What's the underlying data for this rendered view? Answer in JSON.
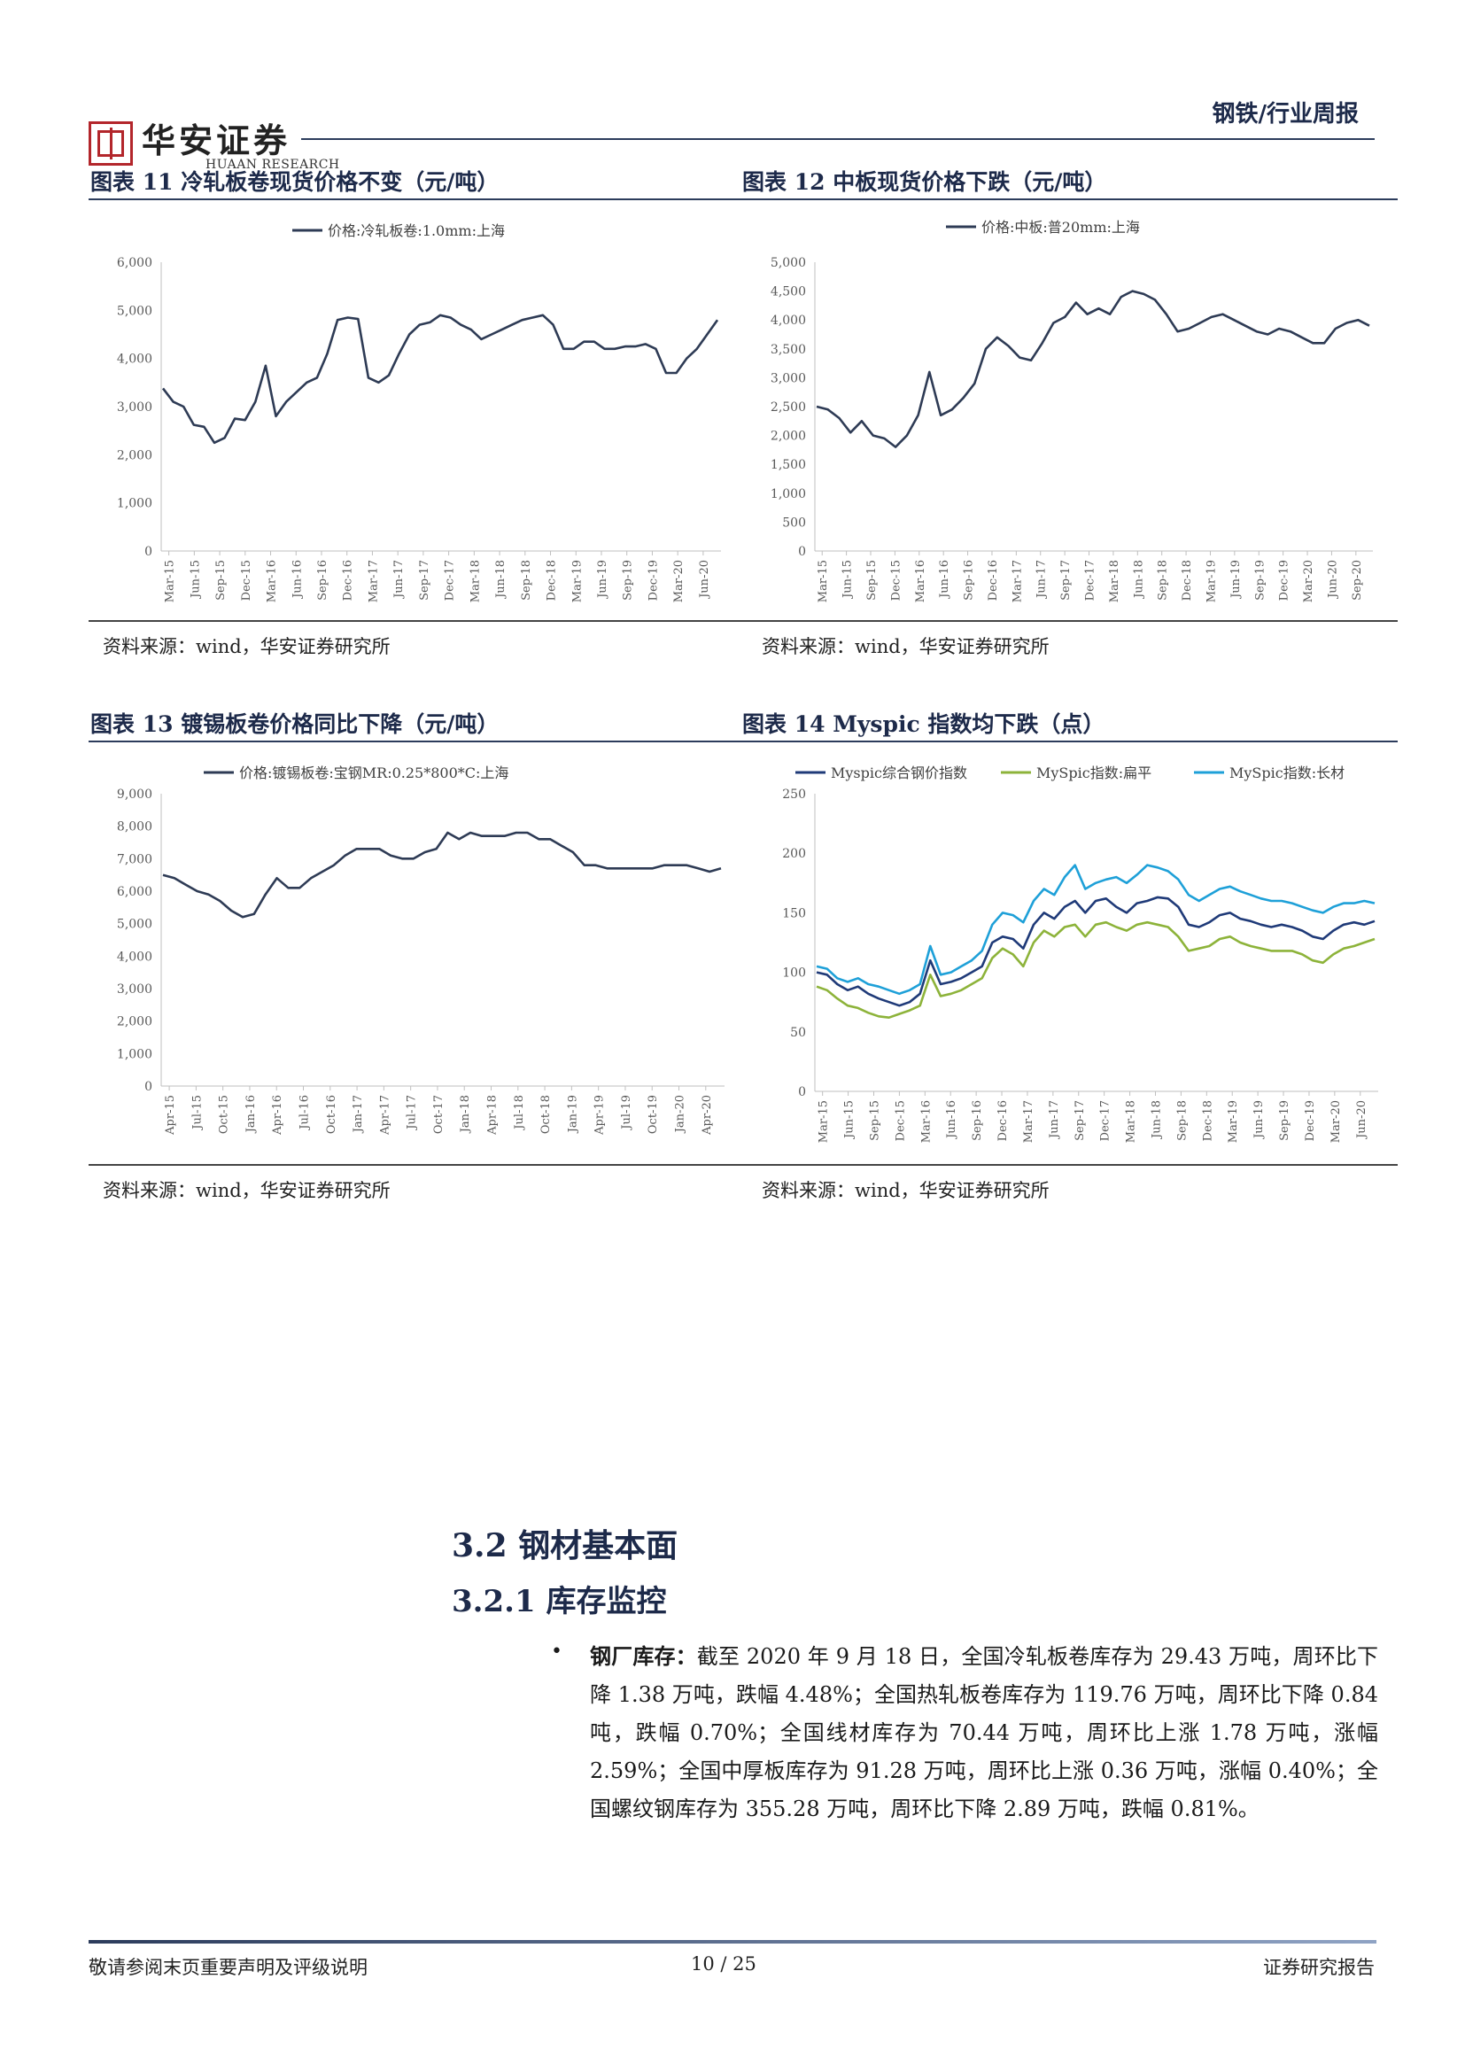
{
  "header": {
    "logo_cn": "华安证券",
    "logo_en": "HUAAN RESEARCH",
    "category": "钢铁/行业周报"
  },
  "figures": [
    {
      "title": "图表 11 冷轧板卷现货价格不变（元/吨）",
      "source": "资料来源：wind，华安证券研究所"
    },
    {
      "title": "图表 12 中板现货价格下跌（元/吨）",
      "source": "资料来源：wind，华安证券研究所"
    },
    {
      "title": "图表 13 镀锡板卷价格同比下降（元/吨）",
      "source": "资料来源：wind，华安证券研究所"
    },
    {
      "title": "图表 14 Myspic 指数均下跌（点）",
      "source": "资料来源：wind，华安证券研究所"
    }
  ],
  "chart_data": [
    {
      "type": "line",
      "series": [
        {
          "name": "价格:冷轧板卷:1.0mm:上海",
          "color": "#2e3b55",
          "values": [
            3380,
            3100,
            3000,
            2620,
            2580,
            2250,
            2350,
            2750,
            2720,
            3100,
            3850,
            2800,
            3100,
            3300,
            3500,
            3600,
            4100,
            4800,
            4850,
            4820,
            3600,
            3500,
            3650,
            4100,
            4500,
            4700,
            4750,
            4900,
            4850,
            4700,
            4600,
            4400,
            4500,
            4600,
            4700,
            4800,
            4850,
            4900,
            4700,
            4200,
            4200,
            4350,
            4350,
            4200,
            4200,
            4250,
            4250,
            4300,
            4200,
            3700,
            3700,
            4000,
            4200,
            4500,
            4800
          ]
        }
      ],
      "x_ticks": [
        "Mar-15",
        "Jun-15",
        "Sep-15",
        "Dec-15",
        "Mar-16",
        "Jun-16",
        "Sep-16",
        "Dec-16",
        "Mar-17",
        "Jun-17",
        "Sep-17",
        "Dec-17",
        "Mar-18",
        "Jun-18",
        "Sep-18",
        "Dec-18",
        "Mar-19",
        "Jun-19",
        "Sep-19",
        "Dec-19",
        "Mar-20",
        "Jun-20"
      ],
      "y_ticks": [
        "0",
        "1,000",
        "2,000",
        "3,000",
        "4,000",
        "5,000",
        "6,000"
      ],
      "ylim": [
        0,
        6000
      ]
    },
    {
      "type": "line",
      "series": [
        {
          "name": "价格:中板:普20mm:上海",
          "color": "#2e3b55",
          "values": [
            2500,
            2450,
            2300,
            2050,
            2250,
            2000,
            1950,
            1800,
            2000,
            2350,
            3100,
            2350,
            2450,
            2650,
            2900,
            3500,
            3700,
            3550,
            3350,
            3300,
            3600,
            3950,
            4050,
            4300,
            4100,
            4200,
            4100,
            4400,
            4500,
            4450,
            4350,
            4100,
            3800,
            3850,
            3950,
            4050,
            4100,
            4000,
            3900,
            3800,
            3750,
            3850,
            3800,
            3700,
            3600,
            3600,
            3850,
            3950,
            4000,
            3900
          ]
        }
      ],
      "x_ticks": [
        "Mar-15",
        "Jun-15",
        "Sep-15",
        "Dec-15",
        "Mar-16",
        "Jun-16",
        "Sep-16",
        "Dec-16",
        "Mar-17",
        "Jun-17",
        "Sep-17",
        "Dec-17",
        "Mar-18",
        "Jun-18",
        "Sep-18",
        "Dec-18",
        "Mar-19",
        "Jun-19",
        "Sep-19",
        "Dec-19",
        "Mar-20",
        "Jun-20",
        "Sep-20"
      ],
      "y_ticks": [
        "0",
        "500",
        "1,000",
        "1,500",
        "2,000",
        "2,500",
        "3,000",
        "3,500",
        "4,000",
        "4,500",
        "5,000"
      ],
      "ylim": [
        0,
        5000
      ]
    },
    {
      "type": "line",
      "series": [
        {
          "name": "价格:镀锡板卷:宝钢MR:0.25*800*C:上海",
          "color": "#2e3b55",
          "values": [
            6500,
            6400,
            6200,
            6000,
            5900,
            5700,
            5400,
            5200,
            5300,
            5900,
            6400,
            6100,
            6100,
            6400,
            6600,
            6800,
            7100,
            7300,
            7300,
            7300,
            7100,
            7000,
            7000,
            7200,
            7300,
            7800,
            7600,
            7800,
            7700,
            7700,
            7700,
            7800,
            7800,
            7600,
            7600,
            7400,
            7200,
            6800,
            6800,
            6700,
            6700,
            6700,
            6700,
            6700,
            6800,
            6800,
            6800,
            6700,
            6600,
            6700
          ]
        }
      ],
      "x_ticks": [
        "Apr-15",
        "Jul-15",
        "Oct-15",
        "Jan-16",
        "Apr-16",
        "Jul-16",
        "Oct-16",
        "Jan-17",
        "Apr-17",
        "Jul-17",
        "Oct-17",
        "Jan-18",
        "Apr-18",
        "Jul-18",
        "Oct-18",
        "Jan-19",
        "Apr-19",
        "Jul-19",
        "Oct-19",
        "Jan-20",
        "Apr-20"
      ],
      "y_ticks": [
        "0",
        "1,000",
        "2,000",
        "3,000",
        "4,000",
        "5,000",
        "6,000",
        "7,000",
        "8,000",
        "9,000"
      ],
      "ylim": [
        0,
        9000
      ]
    },
    {
      "type": "line",
      "series": [
        {
          "name": "Myspic综合钢价指数",
          "color": "#1f3a78",
          "values": [
            100,
            98,
            90,
            85,
            88,
            82,
            78,
            75,
            72,
            75,
            82,
            110,
            90,
            92,
            95,
            100,
            105,
            125,
            130,
            128,
            120,
            140,
            150,
            145,
            155,
            160,
            150,
            160,
            162,
            155,
            150,
            158,
            160,
            163,
            162,
            155,
            140,
            138,
            142,
            148,
            150,
            145,
            143,
            140,
            138,
            140,
            138,
            135,
            130,
            128,
            135,
            140,
            142,
            140,
            143
          ]
        },
        {
          "name": "MySpic指数:扁平",
          "color": "#8db33a",
          "values": [
            88,
            85,
            78,
            72,
            70,
            66,
            63,
            62,
            65,
            68,
            72,
            98,
            80,
            82,
            85,
            90,
            95,
            112,
            120,
            115,
            105,
            125,
            135,
            130,
            138,
            140,
            130,
            140,
            142,
            138,
            135,
            140,
            142,
            140,
            138,
            130,
            118,
            120,
            122,
            128,
            130,
            125,
            122,
            120,
            118,
            118,
            118,
            115,
            110,
            108,
            115,
            120,
            122,
            125,
            128
          ]
        },
        {
          "name": "MySpic指数:长材",
          "color": "#1ea0d8",
          "values": [
            105,
            103,
            95,
            92,
            95,
            90,
            88,
            85,
            82,
            85,
            90,
            122,
            98,
            100,
            105,
            110,
            118,
            140,
            150,
            148,
            142,
            160,
            170,
            165,
            180,
            190,
            170,
            175,
            178,
            180,
            175,
            182,
            190,
            188,
            185,
            178,
            165,
            160,
            165,
            170,
            172,
            168,
            165,
            162,
            160,
            160,
            158,
            155,
            152,
            150,
            155,
            158,
            158,
            160,
            158
          ]
        }
      ],
      "x_ticks": [
        "Mar-15",
        "Jun-15",
        "Sep-15",
        "Dec-15",
        "Mar-16",
        "Jun-16",
        "Sep-16",
        "Dec-16",
        "Mar-17",
        "Jun-17",
        "Sep-17",
        "Dec-17",
        "Mar-18",
        "Jun-18",
        "Sep-18",
        "Dec-18",
        "Mar-19",
        "Jun-19",
        "Sep-19",
        "Dec-19",
        "Mar-20",
        "Jun-20"
      ],
      "y_ticks": [
        "0",
        "50",
        "100",
        "150",
        "200",
        "250"
      ],
      "ylim": [
        0,
        250
      ]
    }
  ],
  "section": {
    "h2": "3.2 钢材基本面",
    "h3": "3.2.1 库存监控",
    "bullet": "•",
    "lead": "钢厂库存：",
    "body": "截至 2020 年 9 月 18 日，全国冷轧板卷库存为 29.43 万吨，周环比下降 1.38 万吨，跌幅 4.48%；全国热轧板卷库存为 119.76 万吨，周环比下降 0.84 吨，跌幅 0.70%；全国线材库存为 70.44 万吨，周环比上涨 1.78 万吨，涨幅 2.59%；全国中厚板库存为 91.28 万吨，周环比上涨 0.36 万吨，涨幅 0.40%；全国螺纹钢库存为 355.28 万吨，周环比下降 2.89 万吨，跌幅 0.81%。"
  },
  "footer": {
    "left": "敬请参阅末页重要声明及评级说明",
    "page": "10 / 25",
    "right": "证券研究报告"
  }
}
